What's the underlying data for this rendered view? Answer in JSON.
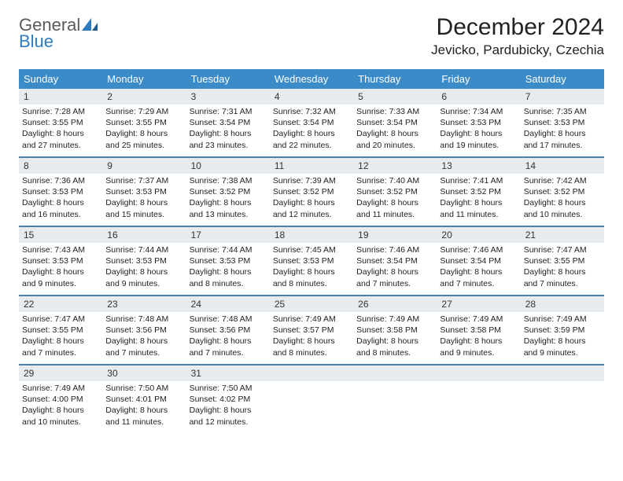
{
  "logo": {
    "general": "General",
    "blue": "Blue"
  },
  "title": "December 2024",
  "location": "Jevicko, Pardubicky, Czechia",
  "colors": {
    "header_bar": "#3b8bc9",
    "week_divider": "#4a7da8",
    "daynum_bg": "#e8ebee",
    "logo_gray": "#5a5a5a",
    "logo_blue": "#2f7bbf"
  },
  "weekdays": [
    "Sunday",
    "Monday",
    "Tuesday",
    "Wednesday",
    "Thursday",
    "Friday",
    "Saturday"
  ],
  "weeks": [
    [
      {
        "n": "1",
        "sr": "Sunrise: 7:28 AM",
        "ss": "Sunset: 3:55 PM",
        "d1": "Daylight: 8 hours",
        "d2": "and 27 minutes."
      },
      {
        "n": "2",
        "sr": "Sunrise: 7:29 AM",
        "ss": "Sunset: 3:55 PM",
        "d1": "Daylight: 8 hours",
        "d2": "and 25 minutes."
      },
      {
        "n": "3",
        "sr": "Sunrise: 7:31 AM",
        "ss": "Sunset: 3:54 PM",
        "d1": "Daylight: 8 hours",
        "d2": "and 23 minutes."
      },
      {
        "n": "4",
        "sr": "Sunrise: 7:32 AM",
        "ss": "Sunset: 3:54 PM",
        "d1": "Daylight: 8 hours",
        "d2": "and 22 minutes."
      },
      {
        "n": "5",
        "sr": "Sunrise: 7:33 AM",
        "ss": "Sunset: 3:54 PM",
        "d1": "Daylight: 8 hours",
        "d2": "and 20 minutes."
      },
      {
        "n": "6",
        "sr": "Sunrise: 7:34 AM",
        "ss": "Sunset: 3:53 PM",
        "d1": "Daylight: 8 hours",
        "d2": "and 19 minutes."
      },
      {
        "n": "7",
        "sr": "Sunrise: 7:35 AM",
        "ss": "Sunset: 3:53 PM",
        "d1": "Daylight: 8 hours",
        "d2": "and 17 minutes."
      }
    ],
    [
      {
        "n": "8",
        "sr": "Sunrise: 7:36 AM",
        "ss": "Sunset: 3:53 PM",
        "d1": "Daylight: 8 hours",
        "d2": "and 16 minutes."
      },
      {
        "n": "9",
        "sr": "Sunrise: 7:37 AM",
        "ss": "Sunset: 3:53 PM",
        "d1": "Daylight: 8 hours",
        "d2": "and 15 minutes."
      },
      {
        "n": "10",
        "sr": "Sunrise: 7:38 AM",
        "ss": "Sunset: 3:52 PM",
        "d1": "Daylight: 8 hours",
        "d2": "and 13 minutes."
      },
      {
        "n": "11",
        "sr": "Sunrise: 7:39 AM",
        "ss": "Sunset: 3:52 PM",
        "d1": "Daylight: 8 hours",
        "d2": "and 12 minutes."
      },
      {
        "n": "12",
        "sr": "Sunrise: 7:40 AM",
        "ss": "Sunset: 3:52 PM",
        "d1": "Daylight: 8 hours",
        "d2": "and 11 minutes."
      },
      {
        "n": "13",
        "sr": "Sunrise: 7:41 AM",
        "ss": "Sunset: 3:52 PM",
        "d1": "Daylight: 8 hours",
        "d2": "and 11 minutes."
      },
      {
        "n": "14",
        "sr": "Sunrise: 7:42 AM",
        "ss": "Sunset: 3:52 PM",
        "d1": "Daylight: 8 hours",
        "d2": "and 10 minutes."
      }
    ],
    [
      {
        "n": "15",
        "sr": "Sunrise: 7:43 AM",
        "ss": "Sunset: 3:53 PM",
        "d1": "Daylight: 8 hours",
        "d2": "and 9 minutes."
      },
      {
        "n": "16",
        "sr": "Sunrise: 7:44 AM",
        "ss": "Sunset: 3:53 PM",
        "d1": "Daylight: 8 hours",
        "d2": "and 9 minutes."
      },
      {
        "n": "17",
        "sr": "Sunrise: 7:44 AM",
        "ss": "Sunset: 3:53 PM",
        "d1": "Daylight: 8 hours",
        "d2": "and 8 minutes."
      },
      {
        "n": "18",
        "sr": "Sunrise: 7:45 AM",
        "ss": "Sunset: 3:53 PM",
        "d1": "Daylight: 8 hours",
        "d2": "and 8 minutes."
      },
      {
        "n": "19",
        "sr": "Sunrise: 7:46 AM",
        "ss": "Sunset: 3:54 PM",
        "d1": "Daylight: 8 hours",
        "d2": "and 7 minutes."
      },
      {
        "n": "20",
        "sr": "Sunrise: 7:46 AM",
        "ss": "Sunset: 3:54 PM",
        "d1": "Daylight: 8 hours",
        "d2": "and 7 minutes."
      },
      {
        "n": "21",
        "sr": "Sunrise: 7:47 AM",
        "ss": "Sunset: 3:55 PM",
        "d1": "Daylight: 8 hours",
        "d2": "and 7 minutes."
      }
    ],
    [
      {
        "n": "22",
        "sr": "Sunrise: 7:47 AM",
        "ss": "Sunset: 3:55 PM",
        "d1": "Daylight: 8 hours",
        "d2": "and 7 minutes."
      },
      {
        "n": "23",
        "sr": "Sunrise: 7:48 AM",
        "ss": "Sunset: 3:56 PM",
        "d1": "Daylight: 8 hours",
        "d2": "and 7 minutes."
      },
      {
        "n": "24",
        "sr": "Sunrise: 7:48 AM",
        "ss": "Sunset: 3:56 PM",
        "d1": "Daylight: 8 hours",
        "d2": "and 7 minutes."
      },
      {
        "n": "25",
        "sr": "Sunrise: 7:49 AM",
        "ss": "Sunset: 3:57 PM",
        "d1": "Daylight: 8 hours",
        "d2": "and 8 minutes."
      },
      {
        "n": "26",
        "sr": "Sunrise: 7:49 AM",
        "ss": "Sunset: 3:58 PM",
        "d1": "Daylight: 8 hours",
        "d2": "and 8 minutes."
      },
      {
        "n": "27",
        "sr": "Sunrise: 7:49 AM",
        "ss": "Sunset: 3:58 PM",
        "d1": "Daylight: 8 hours",
        "d2": "and 9 minutes."
      },
      {
        "n": "28",
        "sr": "Sunrise: 7:49 AM",
        "ss": "Sunset: 3:59 PM",
        "d1": "Daylight: 8 hours",
        "d2": "and 9 minutes."
      }
    ],
    [
      {
        "n": "29",
        "sr": "Sunrise: 7:49 AM",
        "ss": "Sunset: 4:00 PM",
        "d1": "Daylight: 8 hours",
        "d2": "and 10 minutes."
      },
      {
        "n": "30",
        "sr": "Sunrise: 7:50 AM",
        "ss": "Sunset: 4:01 PM",
        "d1": "Daylight: 8 hours",
        "d2": "and 11 minutes."
      },
      {
        "n": "31",
        "sr": "Sunrise: 7:50 AM",
        "ss": "Sunset: 4:02 PM",
        "d1": "Daylight: 8 hours",
        "d2": "and 12 minutes."
      },
      {
        "empty": true
      },
      {
        "empty": true
      },
      {
        "empty": true
      },
      {
        "empty": true
      }
    ]
  ]
}
